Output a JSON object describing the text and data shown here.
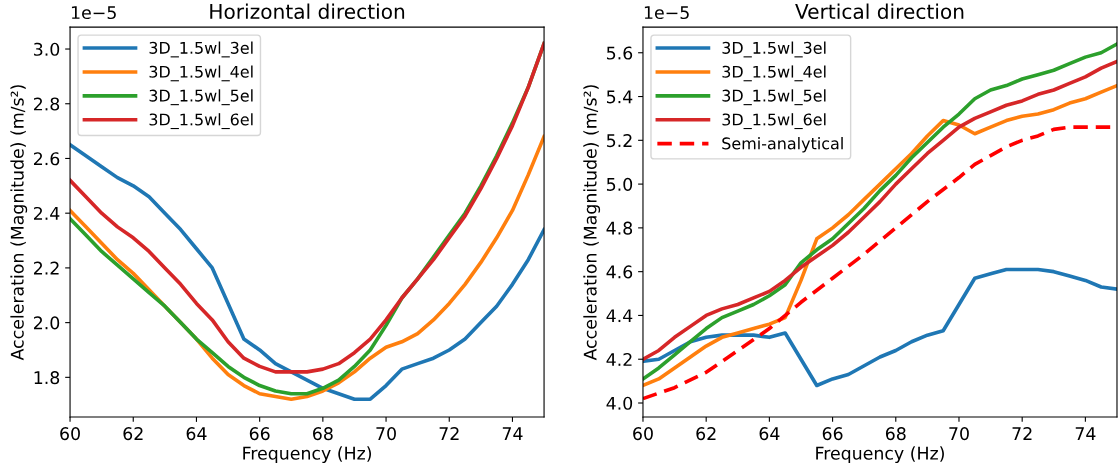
{
  "chart_data": [
    {
      "type": "line",
      "title": "Horizontal direction",
      "xlabel": "Frequency (Hz)",
      "ylabel": "Acceleration (Magnitude) (m/s²)",
      "x": [
        60,
        60.5,
        61,
        61.5,
        62,
        62.5,
        63,
        63.5,
        64,
        64.5,
        65,
        65.5,
        66,
        66.5,
        67,
        67.5,
        68,
        68.5,
        69,
        69.5,
        70,
        70.5,
        71,
        71.5,
        72,
        72.5,
        73,
        73.5,
        74,
        74.5,
        75
      ],
      "series": [
        {
          "name": "3D_1.5wl_3el",
          "color": "#1f77b4",
          "values": [
            2.65,
            2.61,
            2.57,
            2.53,
            2.5,
            2.46,
            2.4,
            2.34,
            2.27,
            2.2,
            2.07,
            1.94,
            1.9,
            1.85,
            1.82,
            1.79,
            1.76,
            1.74,
            1.72,
            1.72,
            1.77,
            1.83,
            1.85,
            1.87,
            1.9,
            1.94,
            2.0,
            2.06,
            2.14,
            2.23,
            2.34
          ]
        },
        {
          "name": "3D_1.5wl_4el",
          "color": "#ff7f0e",
          "values": [
            2.41,
            2.35,
            2.29,
            2.23,
            2.18,
            2.12,
            2.06,
            2.0,
            1.94,
            1.87,
            1.81,
            1.77,
            1.74,
            1.73,
            1.72,
            1.73,
            1.75,
            1.78,
            1.82,
            1.87,
            1.91,
            1.93,
            1.96,
            2.01,
            2.07,
            2.14,
            2.22,
            2.31,
            2.41,
            2.54,
            2.68
          ]
        },
        {
          "name": "3D_1.5wl_5el",
          "color": "#2ca02c",
          "values": [
            2.38,
            2.32,
            2.26,
            2.21,
            2.16,
            2.11,
            2.06,
            2.0,
            1.94,
            1.89,
            1.84,
            1.8,
            1.77,
            1.75,
            1.74,
            1.74,
            1.76,
            1.79,
            1.84,
            1.9,
            1.99,
            2.09,
            2.16,
            2.24,
            2.32,
            2.4,
            2.5,
            2.61,
            2.73,
            2.86,
            3.02
          ]
        },
        {
          "name": "3D_1.5wl_6el",
          "color": "#d62728",
          "values": [
            2.52,
            2.46,
            2.4,
            2.35,
            2.31,
            2.26,
            2.2,
            2.14,
            2.07,
            2.01,
            1.93,
            1.87,
            1.84,
            1.82,
            1.82,
            1.82,
            1.83,
            1.85,
            1.89,
            1.94,
            2.01,
            2.09,
            2.16,
            2.23,
            2.31,
            2.39,
            2.49,
            2.6,
            2.72,
            2.86,
            3.02
          ]
        }
      ],
      "xlim": [
        60,
        75
      ],
      "xticks": [
        60,
        62,
        64,
        66,
        68,
        70,
        72,
        74
      ],
      "ylim": [
        1.655,
        3.08
      ],
      "yticks": [
        1.8,
        {
          "value": 2,
          "label": "2.0"
        },
        2.2,
        2.4,
        2.6,
        2.8,
        {
          "value": 3,
          "label": "3.0"
        }
      ],
      "annotations": [
        "1e−5"
      ],
      "legend": "top left",
      "grid": false
    },
    {
      "type": "line",
      "title": "Vertical direction",
      "xlabel": "Frequency (Hz)",
      "ylabel": "Acceleration (Magnitude) (m/s²)",
      "x": [
        60,
        60.5,
        61,
        61.5,
        62,
        62.5,
        63,
        63.5,
        64,
        64.5,
        65,
        65.5,
        66,
        66.5,
        67,
        67.5,
        68,
        68.5,
        69,
        69.5,
        70,
        70.5,
        71,
        71.5,
        72,
        72.5,
        73,
        73.5,
        74,
        74.5,
        75
      ],
      "series": [
        {
          "name": "3D_1.5wl_3el",
          "color": "#1f77b4",
          "values": [
            4.19,
            4.2,
            4.24,
            4.28,
            4.3,
            4.31,
            4.31,
            4.31,
            4.3,
            4.32,
            4.2,
            4.08,
            4.11,
            4.13,
            4.17,
            4.21,
            4.24,
            4.28,
            4.31,
            4.33,
            4.45,
            4.57,
            4.59,
            4.61,
            4.61,
            4.61,
            4.6,
            4.58,
            4.56,
            4.53,
            4.52
          ]
        },
        {
          "name": "3D_1.5wl_4el",
          "color": "#ff7f0e",
          "values": [
            4.08,
            4.11,
            4.16,
            4.21,
            4.26,
            4.3,
            4.32,
            4.34,
            4.36,
            4.39,
            4.56,
            4.75,
            4.8,
            4.86,
            4.93,
            5.0,
            5.07,
            5.14,
            5.22,
            5.29,
            5.27,
            5.23,
            5.26,
            5.29,
            5.31,
            5.32,
            5.34,
            5.37,
            5.39,
            5.42,
            5.45
          ]
        },
        {
          "name": "3D_1.5wl_5el",
          "color": "#2ca02c",
          "values": [
            4.11,
            4.16,
            4.22,
            4.28,
            4.34,
            4.39,
            4.42,
            4.45,
            4.49,
            4.54,
            4.64,
            4.7,
            4.75,
            4.82,
            4.89,
            4.97,
            5.04,
            5.12,
            5.19,
            5.26,
            5.32,
            5.39,
            5.43,
            5.45,
            5.48,
            5.5,
            5.52,
            5.55,
            5.58,
            5.6,
            5.64
          ]
        },
        {
          "name": "3D_1.5wl_6el",
          "color": "#d62728",
          "values": [
            4.2,
            4.24,
            4.3,
            4.35,
            4.4,
            4.43,
            4.45,
            4.48,
            4.51,
            4.56,
            4.62,
            4.67,
            4.72,
            4.78,
            4.85,
            4.92,
            5.0,
            5.07,
            5.14,
            5.2,
            5.26,
            5.3,
            5.33,
            5.36,
            5.38,
            5.41,
            5.43,
            5.46,
            5.49,
            5.53,
            5.56
          ]
        },
        {
          "name": "Semi-analytical",
          "color": "#ff0000",
          "line_style": "dashed",
          "x": [
            60,
            61,
            62,
            63,
            64,
            65,
            66,
            67,
            68,
            69,
            70,
            70.5,
            71,
            71.5,
            72,
            72.5,
            73,
            73.5,
            74,
            74.5,
            75
          ],
          "values": [
            4.02,
            4.07,
            4.14,
            4.24,
            4.34,
            4.46,
            4.57,
            4.68,
            4.8,
            4.92,
            5.03,
            5.09,
            5.13,
            5.17,
            5.2,
            5.22,
            5.25,
            5.26,
            5.26,
            5.26,
            5.26
          ]
        }
      ],
      "xlim": [
        60,
        75
      ],
      "xticks": [
        60,
        62,
        64,
        66,
        68,
        70,
        72,
        74
      ],
      "ylim": [
        3.936,
        5.717
      ],
      "yticks": [
        {
          "value": 4,
          "label": "4.0"
        },
        4.2,
        4.4,
        4.6,
        4.8,
        {
          "value": 5,
          "label": "5.0"
        },
        5.2,
        5.4,
        5.6
      ],
      "annotations": [
        "1e−5"
      ],
      "legend": "top left",
      "grid": false
    }
  ]
}
